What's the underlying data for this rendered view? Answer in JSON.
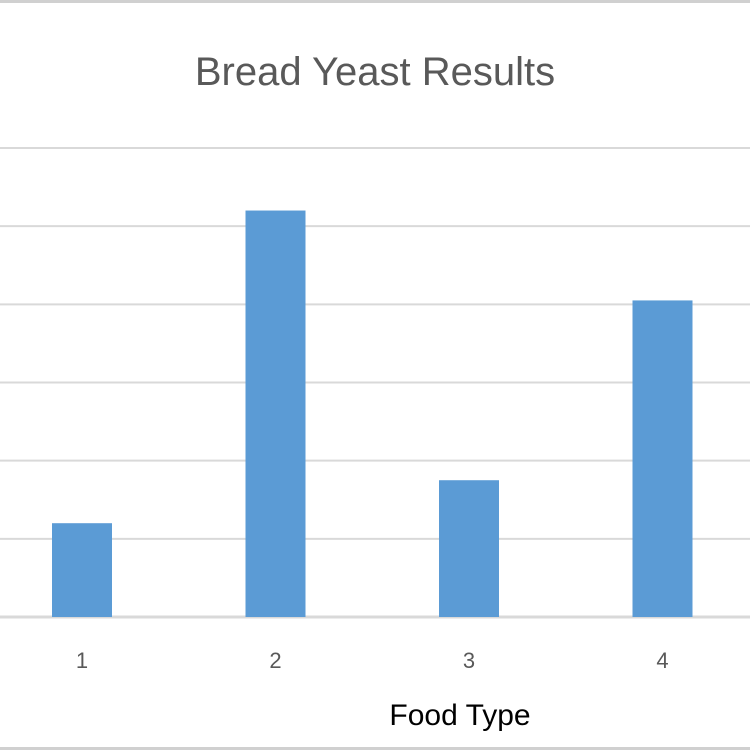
{
  "chart_data": {
    "type": "bar",
    "title": "Bread Yeast Results",
    "xlabel": "Food Type",
    "ylabel": "",
    "categories": [
      "1",
      "2",
      "3",
      "4"
    ],
    "values": [
      1.2,
      5.2,
      1.75,
      4.05
    ],
    "ylim": [
      0,
      6
    ],
    "grid": true,
    "legend": "none",
    "bar_color": "#5b9bd5",
    "grid_color": "#d9d9d9"
  }
}
